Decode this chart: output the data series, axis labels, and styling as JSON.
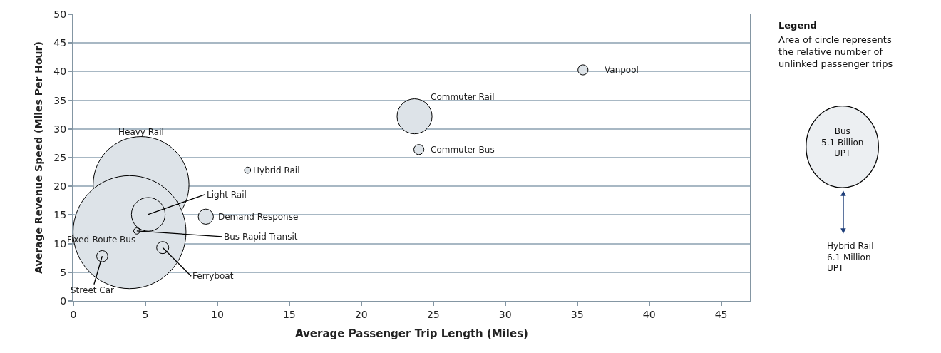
{
  "chart_data": {
    "type": "bubble",
    "xlabel": "Average Passenger Trip Length (Miles)",
    "ylabel": "Average Revenue Speed (Miles Per Hour)",
    "series": [
      {
        "color": "#dde3e8",
        "x": [
          4.7,
          3.9,
          5.2,
          4.4,
          2.0,
          6.2,
          9.2,
          12.1,
          23.7,
          24.0,
          35.4
        ],
        "values": [
          20.3,
          12.0,
          15.1,
          12.2,
          7.8,
          9.3,
          14.7,
          22.8,
          32.2,
          26.4,
          40.3
        ],
        "sizes": [
          0.72,
          1,
          0.089,
          0.003,
          0.0097,
          0.0115,
          0.018,
          0.003,
          0.096,
          0.008,
          0.008
        ]
      }
    ],
    "xlim": [
      0,
      47
    ],
    "xticks": [
      0,
      5,
      10,
      15,
      20,
      25,
      30,
      35,
      40,
      45
    ],
    "ylim": [
      0,
      50
    ],
    "yticks": [
      0,
      5,
      10,
      15,
      20,
      25,
      30,
      35,
      40,
      45,
      50
    ],
    "grid": "y",
    "annotations": [
      "Heavy Rail",
      {
        "text": "Fixed-Route Bus",
        "x": 3.9,
        "y": 12.0
      },
      {
        "text": "Light Rail",
        "x": 5.2,
        "y": 15.1
      },
      {
        "text": "Bus Rapid Transit",
        "x": 4.4,
        "y": 12.2
      },
      {
        "text": "Street Car",
        "x": 2.0,
        "y": 7.8
      },
      {
        "text": "Ferryboat",
        "x": 6.2,
        "y": 9.3
      },
      {
        "text": "Demand Response",
        "x": 9.2,
        "y": 14.7
      },
      {
        "text": "Hybrid Rail",
        "x": 12.1,
        "y": 22.8
      },
      {
        "text": "Commuter Rail",
        "x": 23.7,
        "y": 32.2
      },
      {
        "text": "Commuter Bus",
        "x": 24.0,
        "y": 26.4
      },
      {
        "text": "Vanpool",
        "x": 35.4,
        "y": 40.3
      },
      "Legend",
      "Area of circle represents\nthe relative number of\nunlinked passenger trips",
      "Bus\n5.1 Billion\nUPT",
      "Hybrid Rail\n6.1 Million\nUPT"
    ]
  }
}
